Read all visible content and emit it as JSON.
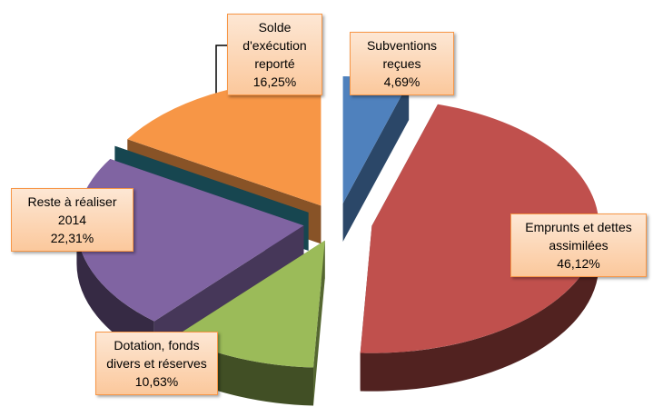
{
  "chart_data": {
    "type": "pie",
    "categories": [
      "Subventions reçues",
      "Emprunts et dettes assimilées",
      "Dotation, fonds divers et réserves",
      "Reste à réaliser 2014",
      null,
      "Solde d'exécution reporté"
    ],
    "values": [
      4.69,
      46.12,
      10.63,
      22.31,
      0,
      16.25
    ],
    "value_labels": [
      "4,69%",
      "46,12%",
      "10,63%",
      "22,31%",
      null,
      "16,25%"
    ],
    "colors": [
      "#4f81bd",
      "#c0504d",
      "#9bbb59",
      "#8064a2",
      "#2a7f92",
      "#f79646"
    ]
  }
}
